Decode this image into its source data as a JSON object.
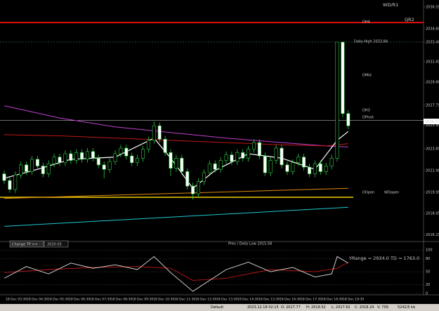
{
  "chart": {
    "candles": [
      [
        2021.6,
        2021.9,
        2020.7,
        2021.0
      ],
      [
        2021.0,
        2021.3,
        2019.9,
        2020.2
      ],
      [
        2020.2,
        2021.8,
        2019.9,
        2021.5
      ],
      [
        2021.5,
        2022.7,
        2021.2,
        2022.4
      ],
      [
        2022.4,
        2022.7,
        2021.5,
        2021.8
      ],
      [
        2021.8,
        2023.2,
        2021.5,
        2022.9
      ],
      [
        2022.9,
        2023.2,
        2022.0,
        2022.3
      ],
      [
        2022.3,
        2022.6,
        2021.3,
        2021.6
      ],
      [
        2021.6,
        2022.8,
        2021.3,
        2022.5
      ],
      [
        2022.5,
        2023.4,
        2022.2,
        2023.1
      ],
      [
        2023.1,
        2023.4,
        2022.3,
        2022.6
      ],
      [
        2022.6,
        2023.7,
        2022.3,
        2023.4
      ],
      [
        2023.4,
        2023.7,
        2022.5,
        2022.8
      ],
      [
        2022.8,
        2023.8,
        2022.5,
        2023.5
      ],
      [
        2023.5,
        2023.8,
        2022.6,
        2022.9
      ],
      [
        2022.9,
        2023.9,
        2022.6,
        2023.6
      ],
      [
        2023.6,
        2023.9,
        2022.7,
        2023.0
      ],
      [
        2023.0,
        2023.3,
        2022.1,
        2022.4
      ],
      [
        2022.4,
        2022.7,
        2021.2,
        2022.0
      ],
      [
        2022.0,
        2023.0,
        2021.7,
        2022.7
      ],
      [
        2022.7,
        2023.7,
        2022.4,
        2023.4
      ],
      [
        2023.4,
        2024.2,
        2023.1,
        2023.9
      ],
      [
        2023.9,
        2024.2,
        2022.9,
        2023.2
      ],
      [
        2023.2,
        2023.5,
        2022.3,
        2022.6
      ],
      [
        2022.6,
        2023.3,
        2022.3,
        2023.0
      ],
      [
        2023.0,
        2024.1,
        2022.7,
        2023.8
      ],
      [
        2023.8,
        2024.9,
        2023.5,
        2024.6
      ],
      [
        2024.6,
        2026.3,
        2024.3,
        2025.9
      ],
      [
        2025.9,
        2026.2,
        2024.4,
        2024.7
      ],
      [
        2024.7,
        2025.0,
        2023.2,
        2023.5
      ],
      [
        2023.5,
        2023.8,
        2021.4,
        2022.1
      ],
      [
        2022.1,
        2023.3,
        2021.8,
        2023.0
      ],
      [
        2023.0,
        2023.3,
        2021.5,
        2021.8
      ],
      [
        2021.8,
        2022.1,
        2020.2,
        2020.5
      ],
      [
        2020.5,
        2020.8,
        2019.3,
        2019.8
      ],
      [
        2019.8,
        2021.2,
        2019.5,
        2020.9
      ],
      [
        2020.9,
        2022.0,
        2020.6,
        2021.7
      ],
      [
        2021.7,
        2022.8,
        2021.4,
        2022.5
      ],
      [
        2022.5,
        2022.8,
        2021.7,
        2022.0
      ],
      [
        2022.0,
        2023.1,
        2021.7,
        2022.8
      ],
      [
        2022.8,
        2023.6,
        2022.5,
        2023.3
      ],
      [
        2023.3,
        2023.6,
        2022.4,
        2022.7
      ],
      [
        2022.7,
        2023.8,
        2022.4,
        2023.5
      ],
      [
        2023.5,
        2023.8,
        2022.7,
        2023.0
      ],
      [
        2023.0,
        2024.1,
        2022.7,
        2023.8
      ],
      [
        2023.8,
        2024.7,
        2023.5,
        2024.4
      ],
      [
        2024.4,
        2024.7,
        2022.9,
        2023.2
      ],
      [
        2023.2,
        2023.5,
        2021.4,
        2021.7
      ],
      [
        2021.7,
        2023.1,
        2021.4,
        2022.8
      ],
      [
        2022.8,
        2024.2,
        2022.5,
        2023.9
      ],
      [
        2023.9,
        2024.2,
        2022.1,
        2022.4
      ],
      [
        2022.4,
        2022.7,
        2021.5,
        2021.8
      ],
      [
        2021.8,
        2022.9,
        2021.5,
        2022.6
      ],
      [
        2022.6,
        2023.4,
        2022.3,
        2023.1
      ],
      [
        2023.1,
        2023.4,
        2021.9,
        2022.2
      ],
      [
        2022.2,
        2022.5,
        2021.3,
        2021.6
      ],
      [
        2021.6,
        2022.8,
        2021.3,
        2022.5
      ],
      [
        2022.5,
        2022.8,
        2021.5,
        2021.8
      ],
      [
        2021.8,
        2022.6,
        2021.5,
        2022.3
      ],
      [
        2022.3,
        2023.3,
        2022.0,
        2023.0
      ],
      [
        2023.0,
        2033.4,
        2022.7,
        2033.4
      ],
      [
        2033.4,
        2033.4,
        2026.7,
        2027.0
      ],
      [
        2027.0,
        2027.3,
        2025.6,
        2025.9
      ]
    ],
    "ylim": [
      2015.6,
      2037.17
    ],
    "yticks": [
      {
        "value": 2036.55,
        "label": "2036.55"
      },
      {
        "value": 2034.6,
        "label": "2034.60"
      },
      {
        "value": 2033.4,
        "label": "2033.40"
      },
      {
        "value": 2031.65,
        "label": "2031.65"
      },
      {
        "value": 2029.8,
        "label": "2029.80"
      },
      {
        "value": 2027.75,
        "label": "2027.75"
      },
      {
        "value": 2025.95,
        "label": "2025.95"
      },
      {
        "value": 2023.85,
        "label": "2023.85"
      },
      {
        "value": 2021.9,
        "label": "2021.90"
      },
      {
        "value": 2019.95,
        "label": "2019.95"
      },
      {
        "value": 2018.05,
        "label": "2018.05"
      },
      {
        "value": 2016.15,
        "label": "2016.15"
      }
    ],
    "levels": [
      {
        "name": "QR2",
        "value": 2035.15,
        "color": "#e01010"
      },
      {
        "name": "DOpen",
        "value": 2019.5,
        "color": "#f0d000"
      },
      {
        "name": "DH3",
        "value": 2026.37,
        "color": "#dddddd"
      }
    ],
    "lines": [
      {
        "color": "#c040d0",
        "x": [
          0,
          10,
          20,
          30,
          40,
          50,
          58,
          62
        ],
        "values": [
          2027.7,
          2026.6,
          2025.8,
          2025.3,
          2024.8,
          2024.4,
          2024.1,
          2024.0
        ]
      },
      {
        "color": "#c01818",
        "x": [
          0,
          10,
          20,
          30,
          40,
          50,
          58,
          62
        ],
        "values": [
          2025.1,
          2025.0,
          2024.8,
          2024.6,
          2024.4,
          2024.2,
          2024.1,
          2024.3
        ]
      },
      {
        "color": "#ffffff",
        "x": [
          0,
          6,
          12,
          20,
          27,
          30,
          34,
          38,
          44,
          50,
          56,
          60,
          62
        ],
        "values": [
          2021.2,
          2022.0,
          2022.9,
          2023.1,
          2024.8,
          2023.0,
          2020.3,
          2021.9,
          2023.4,
          2023.0,
          2022.0,
          2024.6,
          2025.4
        ]
      },
      {
        "color": "#20c8d0",
        "x": [
          0,
          62
        ],
        "values": [
          2016.9,
          2018.6
        ]
      },
      {
        "color": "#e08a10",
        "x": [
          0,
          62
        ],
        "values": [
          2019.4,
          2020.3
        ]
      }
    ],
    "labels": {
      "wdr1": "WD/R1",
      "qr2": "QR2",
      "dh4": "DH4",
      "dailyhigh": "Daily High 2033.84",
      "dmid": "DMid",
      "dh3": "DH3",
      "dpivot": "DPivot",
      "dopen": "DOpen",
      "wdopen": "WDopen",
      "prevlow": "Prev / Daily Low 2015.58",
      "price": "2026.37"
    },
    "tp_button": "Change TP >>",
    "tp_value": "2020.03"
  },
  "oscillator": {
    "info": "YRange = 2934.0    TD = 1763.0",
    "ylim": [
      0,
      110
    ],
    "yticks": [
      0,
      20,
      50,
      80,
      100
    ],
    "main": {
      "color": "#e0e0e0",
      "x": [
        0,
        4,
        8,
        12,
        16,
        20,
        24,
        27,
        30,
        34,
        37,
        40,
        44,
        48,
        52,
        56,
        59,
        60,
        62
      ],
      "values": [
        35,
        62,
        45,
        70,
        58,
        66,
        55,
        85,
        48,
        5,
        30,
        55,
        72,
        50,
        60,
        38,
        45,
        85,
        70
      ]
    },
    "signal": {
      "color": "#c01818",
      "x": [
        0,
        8,
        16,
        24,
        30,
        34,
        40,
        48,
        56,
        60,
        62
      ],
      "values": [
        48,
        55,
        60,
        62,
        58,
        30,
        35,
        55,
        50,
        58,
        72
      ]
    }
  },
  "time_axis": [
    "18 Dec 03:30",
    "18 Dec 04:30",
    "18 Dec 05:30",
    "18 Dec 06:30",
    "18 Dec 07:30",
    "18 Dec 08:30",
    "18 Dec 09:30",
    "18 Dec 10:30",
    "18 Dec 11:30",
    "18 Dec 12:30",
    "18 Dec 13:30",
    "18 Dec 14:30",
    "18 Dec 15:30",
    "18 Dec 16:30",
    "18 Dec 17:30",
    "18 Dec 18:30",
    "18 Dec 19:30"
  ],
  "status": [
    "Default",
    "2023.12.18 02:15",
    "O: 2017.77",
    "H: 2018.52",
    "L: 2017.62",
    "C: 2018.24",
    "V: 709",
    "5242/5 kb"
  ]
}
